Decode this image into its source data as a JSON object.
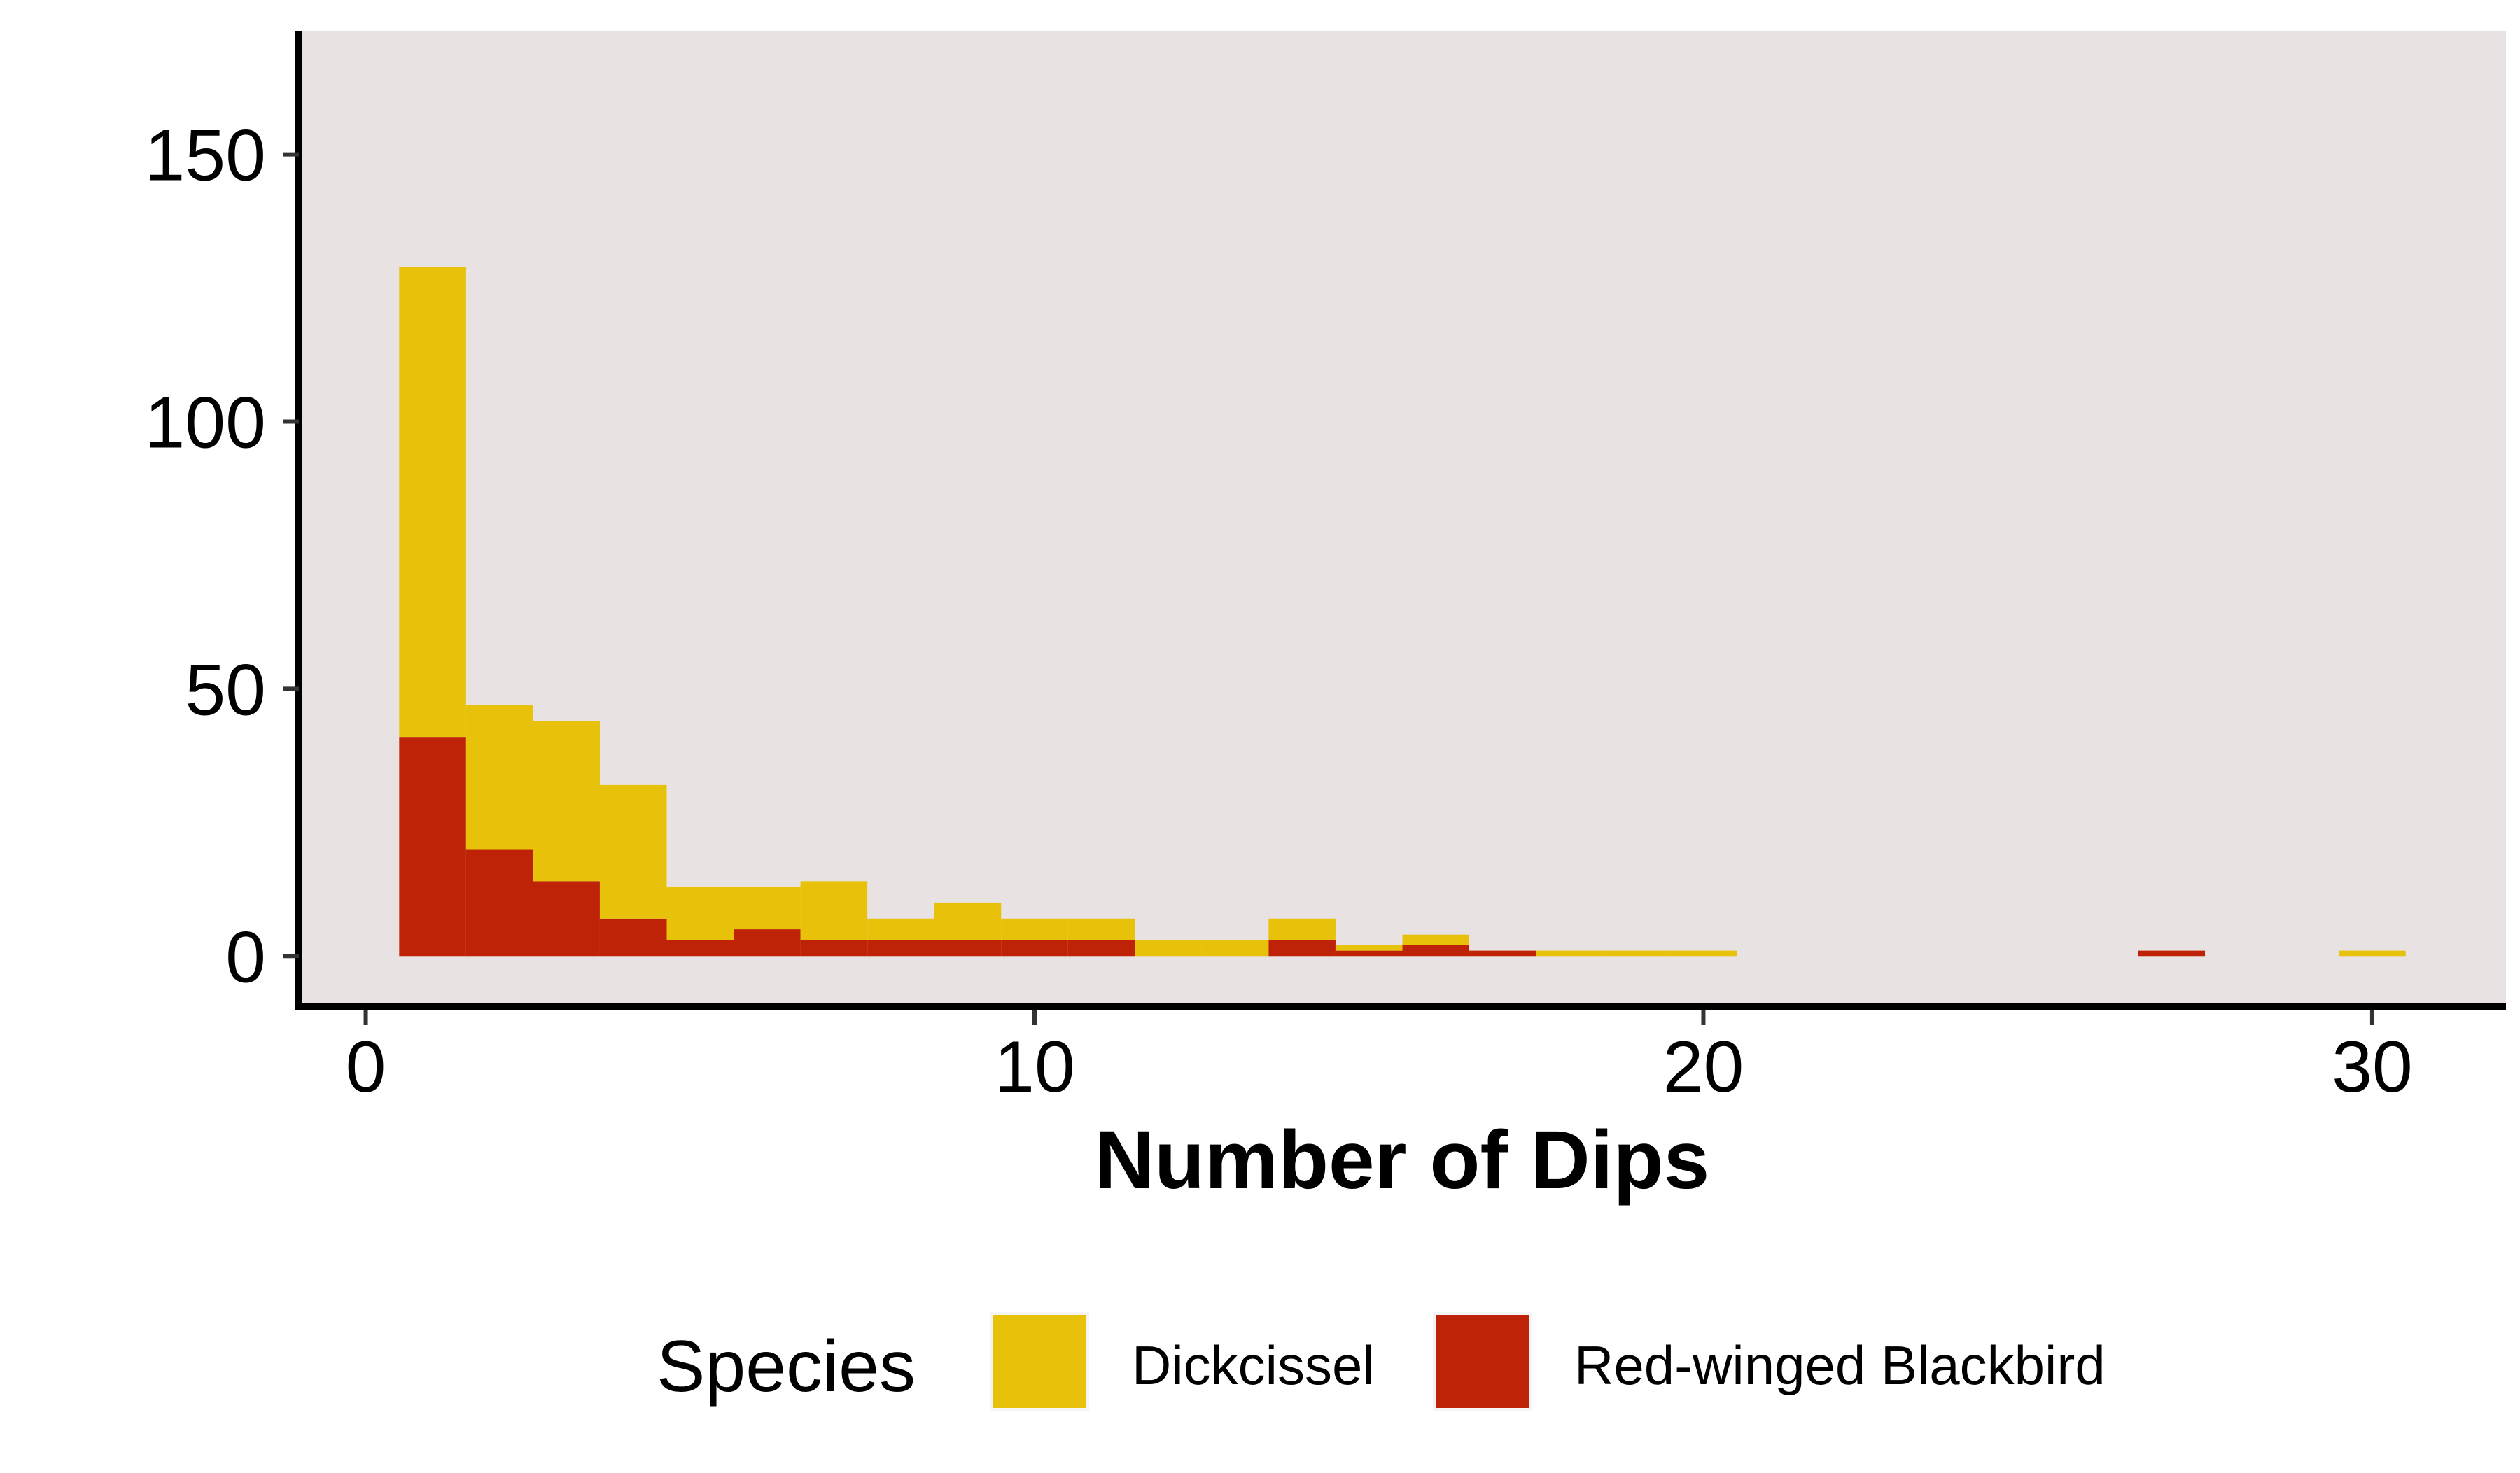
{
  "chart_data": {
    "type": "bar",
    "stacked": true,
    "subtype": "histogram",
    "xlabel": "Number of Dips",
    "ylabel": "",
    "title": "",
    "xlim": [
      -1,
      32
    ],
    "ylim": [
      -9,
      173
    ],
    "xticks": [
      0,
      10,
      20,
      30
    ],
    "yticks": [
      0,
      50,
      100,
      150
    ],
    "x": [
      1,
      2,
      3,
      4,
      5,
      6,
      7,
      8,
      9,
      10,
      11,
      12,
      13,
      14,
      15,
      16,
      17,
      18,
      19,
      20,
      27,
      30
    ],
    "series": [
      {
        "name": "Red-winged Blackbird",
        "color": "#BE2207",
        "values": [
          41,
          20,
          14,
          7,
          3,
          5,
          3,
          3,
          3,
          3,
          3,
          0,
          0,
          3,
          1,
          2,
          1,
          0,
          0,
          0,
          1,
          0
        ]
      },
      {
        "name": "Dickcissel",
        "color": "#E8C10A",
        "values": [
          88,
          27,
          30,
          25,
          10,
          8,
          11,
          4,
          7,
          4,
          4,
          3,
          3,
          4,
          1,
          2,
          0,
          1,
          1,
          1,
          0,
          1
        ]
      }
    ],
    "legend": {
      "title": "Species",
      "position": "bottom",
      "entries": [
        {
          "label": "Dickcissel",
          "color": "#E8C10A"
        },
        {
          "label": "Red-winged Blackbird",
          "color": "#BE2207"
        }
      ]
    },
    "panel_background": "#E8E2E2",
    "grid": false
  }
}
